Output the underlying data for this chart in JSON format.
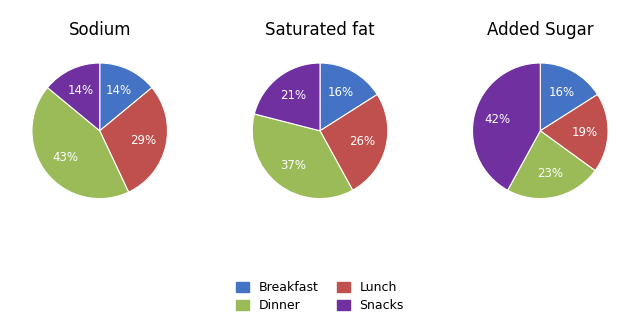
{
  "charts": [
    {
      "title": "Sodium",
      "labels": [
        "Breakfast",
        "Lunch",
        "Dinner",
        "Snacks"
      ],
      "values": [
        14,
        29,
        43,
        14
      ],
      "startangle": 90
    },
    {
      "title": "Saturated fat",
      "labels": [
        "Breakfast",
        "Lunch",
        "Dinner",
        "Snacks"
      ],
      "values": [
        16,
        26,
        37,
        21
      ],
      "startangle": 90
    },
    {
      "title": "Added Sugar",
      "labels": [
        "Breakfast",
        "Lunch",
        "Dinner",
        "Snacks"
      ],
      "values": [
        16,
        19,
        23,
        42
      ],
      "startangle": 90
    }
  ],
  "colors": {
    "Breakfast": "#4472C4",
    "Lunch": "#C0504D",
    "Dinner": "#9BBB59",
    "Snacks": "#7030A0"
  },
  "legend_order": [
    "Breakfast",
    "Dinner",
    "Lunch",
    "Snacks"
  ],
  "label_color": "white",
  "label_fontsize": 8.5,
  "title_fontsize": 12,
  "background_color": "#ffffff"
}
